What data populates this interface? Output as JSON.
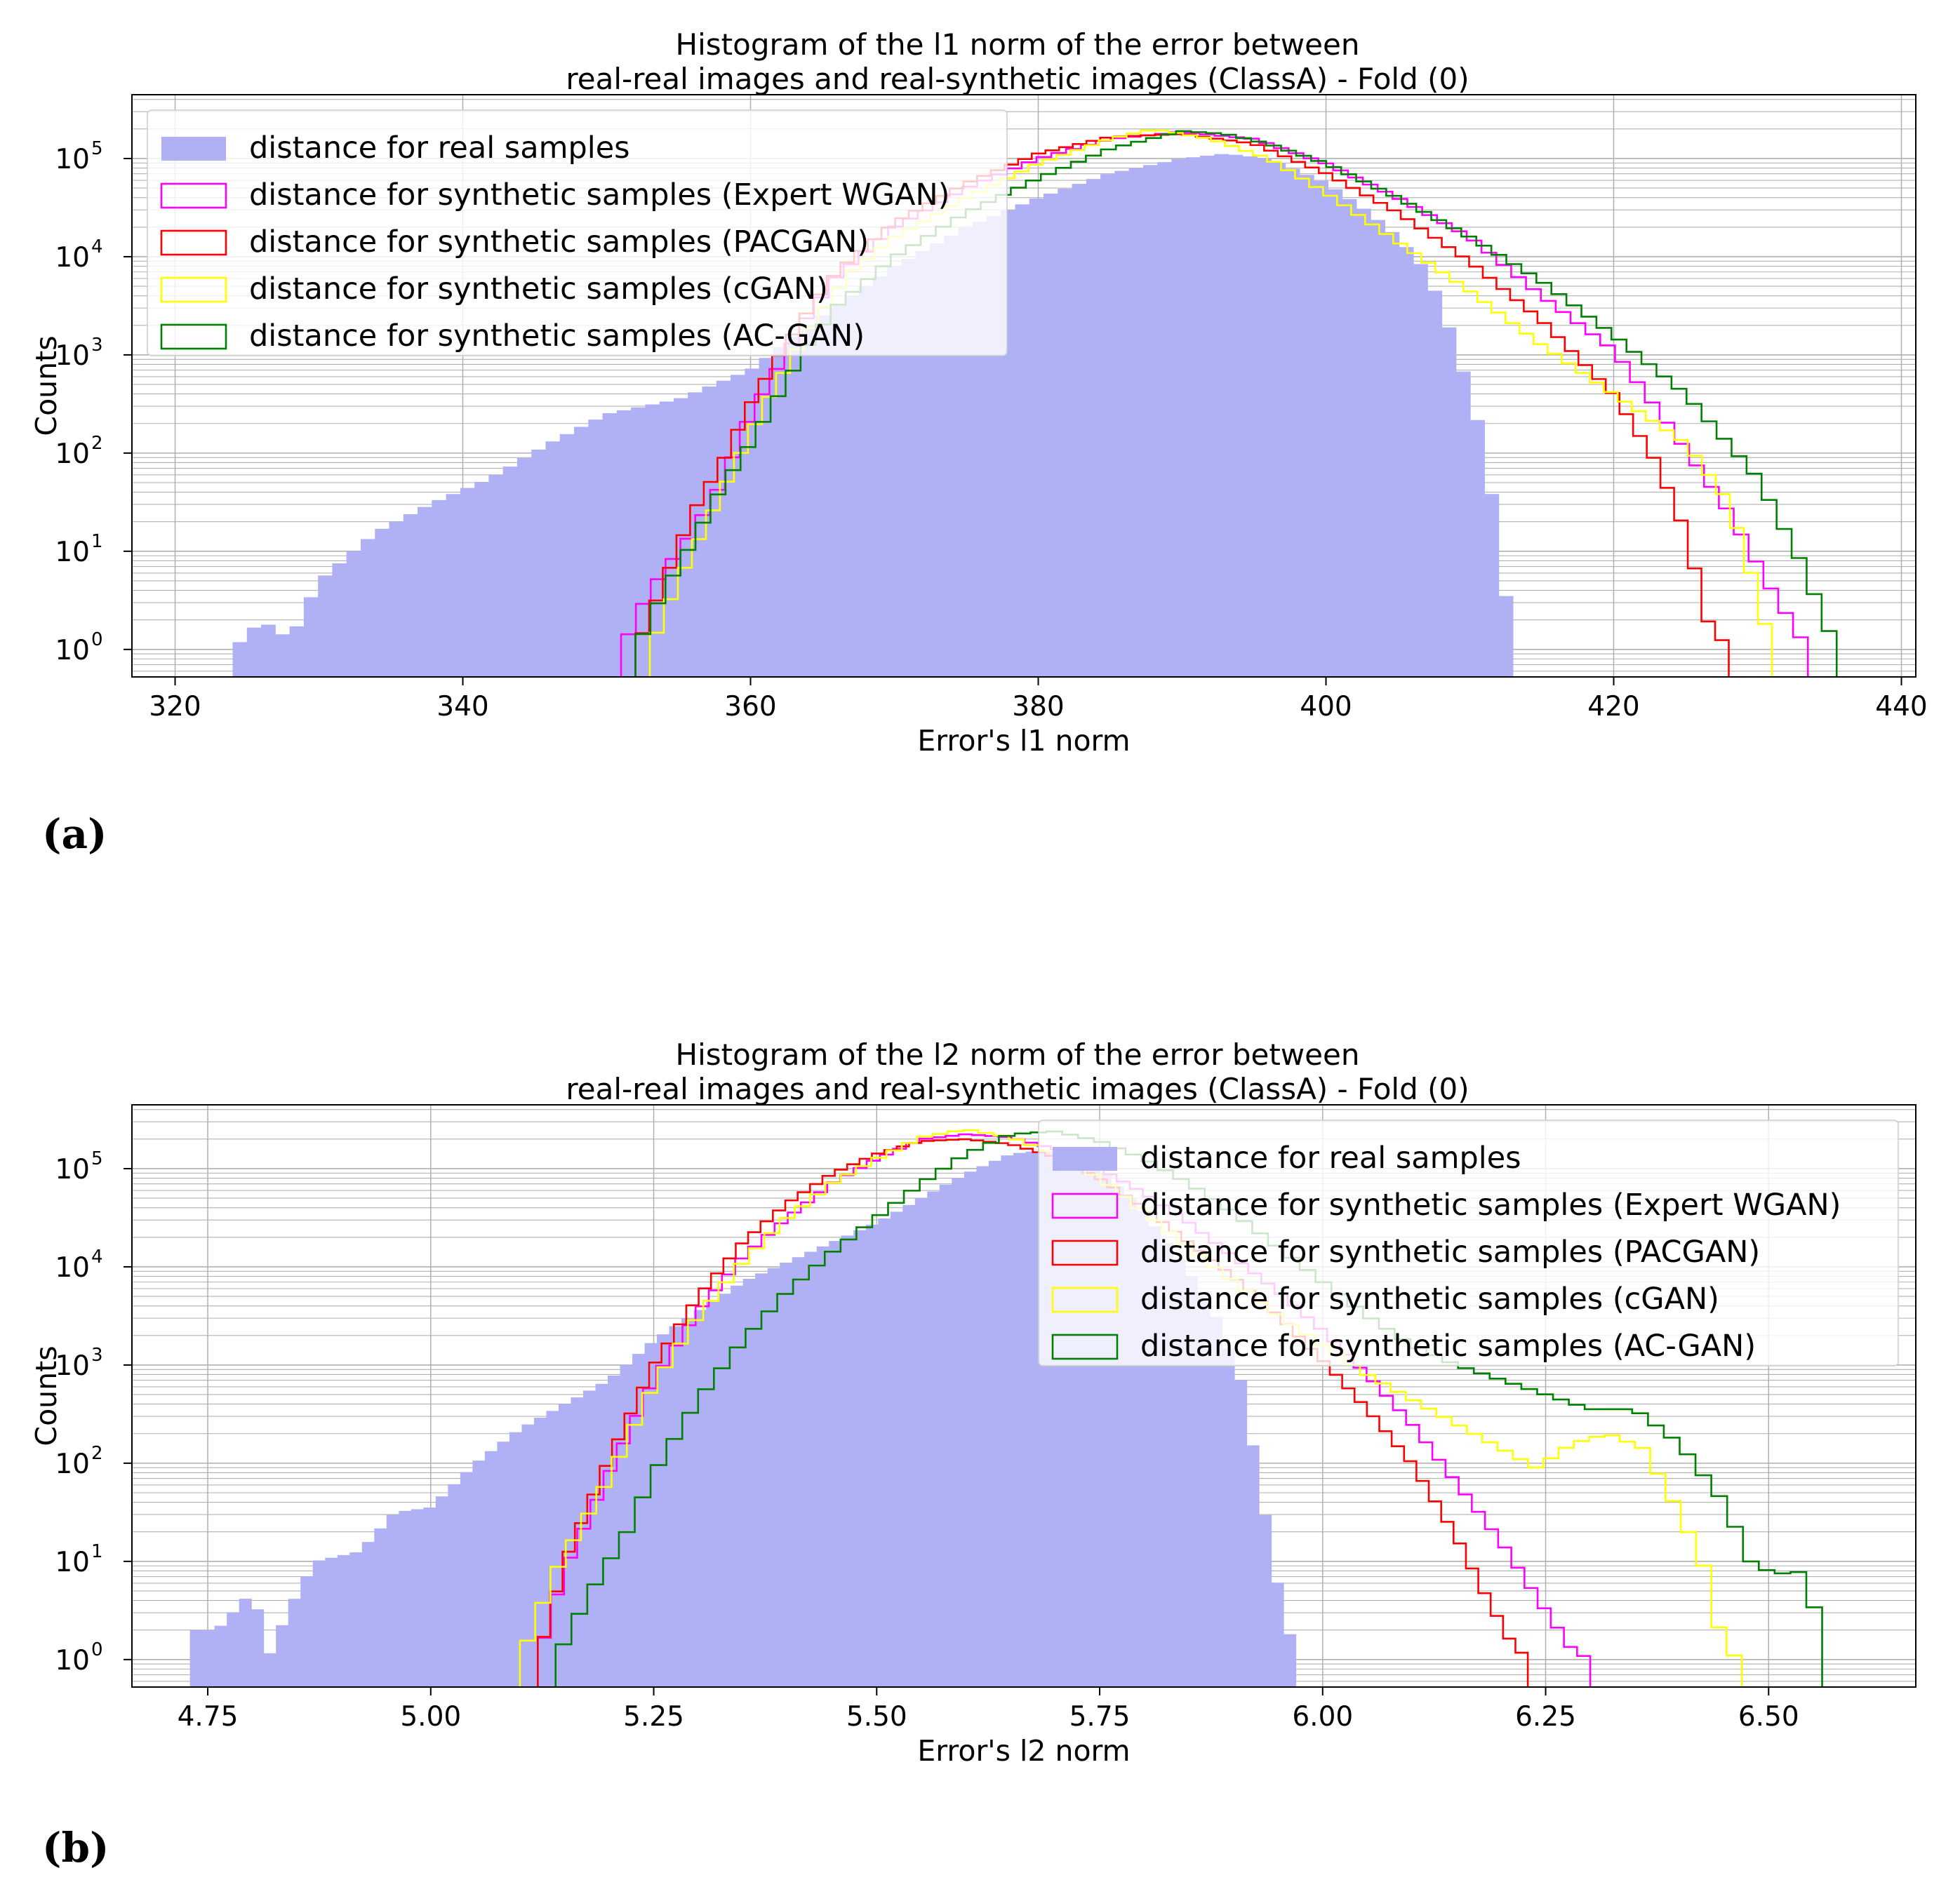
{
  "panels": [
    {
      "label": "(a)"
    },
    {
      "label": "(b)"
    }
  ],
  "colors": {
    "real_fill": "#b0b0f5",
    "expert_wgan": "#ff00ff",
    "pacgan": "#ff0000",
    "cgan": "#ffff00",
    "acgan": "#008000",
    "grid": "#b0b0b0"
  },
  "chart_data": [
    {
      "type": "histogram",
      "title_line1": "Histogram of the l1 norm of the error between",
      "title_line2": "real-real images and real-synthetic images (ClassA) - Fold (0)",
      "xlabel": "Error's l1 norm",
      "ylabel": "Counts",
      "xlim": [
        317,
        441
      ],
      "yscale": "log",
      "ylim_log10": [
        -0.28,
        5.65
      ],
      "x_ticks": [
        320,
        340,
        360,
        380,
        400,
        420,
        440
      ],
      "x_tick_labels": [
        "320",
        "340",
        "360",
        "380",
        "400",
        "420",
        "440"
      ],
      "y_ticks_log10": [
        0,
        1,
        2,
        3,
        4,
        5
      ],
      "y_tick_labels": [
        "10",
        "10",
        "10",
        "10",
        "10",
        "10"
      ],
      "y_tick_exponents": [
        "0",
        "1",
        "2",
        "3",
        "4",
        "5"
      ],
      "legend_position": "upper-left",
      "legend": [
        "distance for real samples",
        "distance for synthetic samples (Expert WGAN)",
        "distance for synthetic samples (PACGAN)",
        "distance for synthetic samples (cGAN)",
        "distance for synthetic samples (AC-GAN)"
      ],
      "real": {
        "name": "distance for real samples",
        "x_start": 324,
        "x_end": 413,
        "anchors_x": [
          324,
          326,
          328,
          330,
          334,
          338,
          342,
          346,
          350,
          355,
          360,
          365,
          370,
          375,
          380,
          385,
          390,
          393,
          396,
          400,
          403,
          405,
          407,
          408,
          409,
          410,
          411,
          412,
          413
        ],
        "anchors_log": [
          0,
          0.3,
          0.1,
          0.7,
          1.2,
          1.5,
          1.75,
          2.1,
          2.4,
          2.55,
          2.85,
          3.4,
          3.9,
          4.3,
          4.6,
          4.85,
          5.0,
          5.05,
          5.0,
          4.75,
          4.45,
          4.2,
          3.85,
          3.5,
          3.1,
          2.6,
          2.1,
          1.1,
          0
        ]
      },
      "series": [
        {
          "name": "Expert WGAN",
          "x_start": 351,
          "x_end": 433.5,
          "anchors_x": [
            351,
            353,
            356,
            358,
            360,
            362,
            364,
            366,
            370,
            375,
            380,
            385,
            390,
            395,
            400,
            405,
            410,
            415,
            420,
            424,
            428,
            431,
            433.5
          ],
          "anchors_log": [
            0,
            0.6,
            1.2,
            1.7,
            2.4,
            2.9,
            3.4,
            3.8,
            4.3,
            4.7,
            5.0,
            5.2,
            5.27,
            5.2,
            4.95,
            4.6,
            4.2,
            3.6,
            3.05,
            2.25,
            1.4,
            0.6,
            0
          ]
        },
        {
          "name": "PACGAN",
          "x_start": 352,
          "x_end": 428,
          "anchors_x": [
            352,
            354,
            356,
            358,
            360,
            362,
            364,
            366,
            370,
            375,
            380,
            385,
            390,
            395,
            400,
            405,
            410,
            415,
            420,
            423,
            425,
            426.5,
            428
          ],
          "anchors_log": [
            0,
            0.7,
            1.4,
            1.9,
            2.5,
            3.0,
            3.45,
            3.85,
            4.35,
            4.75,
            5.05,
            5.22,
            5.25,
            5.15,
            4.85,
            4.45,
            3.95,
            3.35,
            2.6,
            1.9,
            1.2,
            0.3,
            0
          ]
        },
        {
          "name": "cGAN",
          "x_start": 353,
          "x_end": 431,
          "anchors_x": [
            353,
            355,
            357,
            359,
            361,
            363,
            365,
            367,
            370,
            375,
            380,
            385,
            388,
            392,
            396,
            400,
            405,
            410,
            415,
            420,
            425,
            428,
            429.5,
            431
          ],
          "anchors_log": [
            0,
            0.7,
            1.3,
            1.9,
            2.5,
            3.0,
            3.45,
            3.85,
            4.2,
            4.6,
            4.95,
            5.2,
            5.3,
            5.2,
            5.0,
            4.65,
            4.15,
            3.65,
            3.1,
            2.6,
            2.1,
            1.5,
            0.8,
            0
          ]
        },
        {
          "name": "AC-GAN",
          "x_start": 352,
          "x_end": 435.5,
          "anchors_x": [
            352,
            354,
            356,
            358,
            360,
            362,
            364,
            366,
            370,
            375,
            380,
            385,
            390,
            393,
            396,
            400,
            405,
            410,
            415,
            420,
            425,
            430,
            433,
            435.5
          ],
          "anchors_log": [
            0,
            0.6,
            1.1,
            1.65,
            2.1,
            2.6,
            3.1,
            3.5,
            4.0,
            4.45,
            4.8,
            5.1,
            5.28,
            5.25,
            5.15,
            4.95,
            4.6,
            4.2,
            3.75,
            3.2,
            2.6,
            1.75,
            0.9,
            0
          ]
        }
      ]
    },
    {
      "type": "histogram",
      "title_line1": "Histogram of the l2 norm of the error between",
      "title_line2": "real-real images and real-synthetic images (ClassA) - Fold (0)",
      "xlabel": "Error's l2 norm",
      "ylabel": "Counts",
      "xlim": [
        4.665,
        6.665
      ],
      "yscale": "log",
      "ylim_log10": [
        -0.28,
        5.65
      ],
      "x_ticks": [
        4.75,
        5.0,
        5.25,
        5.5,
        5.75,
        6.0,
        6.25,
        6.5
      ],
      "x_tick_labels": [
        "4.75",
        "5.00",
        "5.25",
        "5.50",
        "5.75",
        "6.00",
        "6.25",
        "6.50"
      ],
      "y_ticks_log10": [
        0,
        1,
        2,
        3,
        4,
        5
      ],
      "y_tick_labels": [
        "10",
        "10",
        "10",
        "10",
        "10",
        "10"
      ],
      "y_tick_exponents": [
        "0",
        "1",
        "2",
        "3",
        "4",
        "5"
      ],
      "legend_position": "upper-right",
      "legend": [
        "distance for real samples",
        "distance for synthetic samples (Expert WGAN)",
        "distance for synthetic samples (PACGAN)",
        "distance for synthetic samples (cGAN)",
        "distance for synthetic samples (AC-GAN)"
      ],
      "real": {
        "name": "distance for real samples",
        "x_start": 4.73,
        "x_end": 5.97,
        "anchors_x": [
          4.73,
          4.76,
          4.8,
          4.82,
          4.84,
          4.87,
          4.92,
          4.96,
          5.0,
          5.05,
          5.1,
          5.15,
          5.2,
          5.25,
          5.3,
          5.35,
          5.4,
          5.45,
          5.5,
          5.55,
          5.6,
          5.65,
          5.7,
          5.75,
          5.8,
          5.85,
          5.88,
          5.91,
          5.93,
          5.95,
          5.97
        ],
        "anchors_log": [
          0.3,
          0.3,
          0.7,
          0.05,
          0.5,
          1.0,
          1.1,
          1.5,
          1.55,
          2.0,
          2.35,
          2.6,
          2.85,
          3.25,
          3.55,
          3.85,
          4.05,
          4.25,
          4.45,
          4.7,
          4.95,
          5.15,
          5.2,
          5.0,
          4.55,
          3.95,
          3.5,
          2.8,
          1.75,
          0.75,
          0
        ]
      },
      "series": [
        {
          "name": "Expert WGAN",
          "x_start": 5.12,
          "x_end": 6.3,
          "anchors_x": [
            5.12,
            5.15,
            5.2,
            5.25,
            5.3,
            5.35,
            5.4,
            5.45,
            5.5,
            5.55,
            5.6,
            5.65,
            5.7,
            5.75,
            5.8,
            5.85,
            5.9,
            5.95,
            6.0,
            6.05,
            6.1,
            6.15,
            6.2,
            6.25,
            6.28,
            6.3
          ],
          "anchors_log": [
            0,
            0.9,
            1.9,
            2.85,
            3.55,
            4.1,
            4.5,
            4.85,
            5.1,
            5.3,
            5.35,
            5.32,
            5.2,
            5.0,
            4.75,
            4.45,
            4.1,
            3.75,
            3.35,
            2.9,
            2.4,
            1.8,
            1.2,
            0.5,
            0.1,
            0
          ]
        },
        {
          "name": "PACGAN",
          "x_start": 5.12,
          "x_end": 6.23,
          "anchors_x": [
            5.12,
            5.15,
            5.2,
            5.25,
            5.3,
            5.35,
            5.4,
            5.45,
            5.5,
            5.55,
            5.6,
            5.65,
            5.7,
            5.75,
            5.8,
            5.85,
            5.9,
            5.95,
            6.0,
            6.05,
            6.1,
            6.15,
            6.18,
            6.21,
            6.23
          ],
          "anchors_log": [
            0,
            1.0,
            2.05,
            3.0,
            3.7,
            4.25,
            4.65,
            4.95,
            5.15,
            5.28,
            5.3,
            5.25,
            5.12,
            4.9,
            4.6,
            4.25,
            3.9,
            3.5,
            3.05,
            2.55,
            2.0,
            1.25,
            0.7,
            0.2,
            0
          ]
        },
        {
          "name": "cGAN",
          "x_start": 5.1,
          "x_end": 6.47,
          "anchors_x": [
            5.1,
            5.14,
            5.2,
            5.25,
            5.3,
            5.35,
            5.4,
            5.45,
            5.5,
            5.55,
            5.6,
            5.65,
            5.7,
            5.75,
            5.8,
            5.85,
            5.9,
            5.95,
            6.0,
            6.05,
            6.1,
            6.15,
            6.2,
            6.24,
            6.28,
            6.32,
            6.36,
            6.4,
            6.43,
            6.45,
            6.47
          ],
          "anchors_log": [
            0,
            0.9,
            1.85,
            2.8,
            3.5,
            4.05,
            4.5,
            4.85,
            5.1,
            5.32,
            5.4,
            5.32,
            5.15,
            4.9,
            4.55,
            4.2,
            3.85,
            3.5,
            3.2,
            2.9,
            2.65,
            2.4,
            2.15,
            1.95,
            2.2,
            2.3,
            2.15,
            1.5,
            0.9,
            0.1,
            0
          ]
        },
        {
          "name": "AC-GAN",
          "x_start": 5.14,
          "x_end": 6.56,
          "anchors_x": [
            5.14,
            5.18,
            5.22,
            5.25,
            5.3,
            5.35,
            5.4,
            5.45,
            5.5,
            5.55,
            5.6,
            5.65,
            5.7,
            5.75,
            5.8,
            5.85,
            5.9,
            5.95,
            6.0,
            6.05,
            6.1,
            6.15,
            6.2,
            6.25,
            6.3,
            6.35,
            6.4,
            6.45,
            6.48,
            6.51,
            6.53,
            6.55,
            6.56
          ],
          "anchors_log": [
            0,
            0.7,
            1.3,
            1.9,
            2.65,
            3.25,
            3.75,
            4.15,
            4.5,
            4.85,
            5.15,
            5.35,
            5.38,
            5.28,
            5.1,
            4.85,
            4.55,
            4.2,
            3.85,
            3.5,
            3.2,
            3.0,
            2.85,
            2.7,
            2.55,
            2.55,
            2.2,
            1.6,
            1.0,
            0.85,
            0.95,
            0.6,
            0
          ]
        }
      ]
    }
  ]
}
